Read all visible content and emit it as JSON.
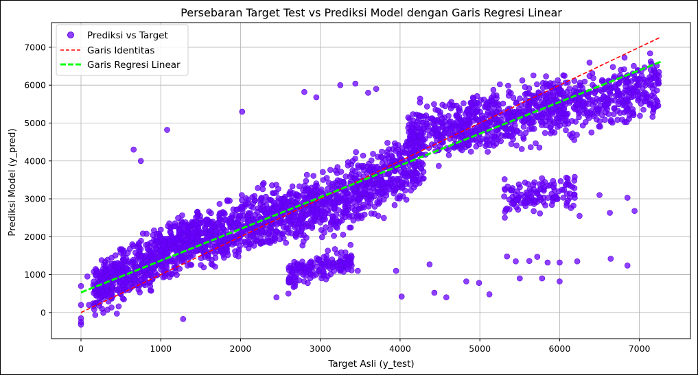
{
  "chart_data": {
    "type": "scatter",
    "title": "Persebaran Target Test vs Prediksi Model dengan Garis Regresi Linear",
    "xlabel": "Target Asli (y_test)",
    "ylabel": "Prediksi Model (y_pred)",
    "xlim": [
      -370,
      7640
    ],
    "ylim": [
      -690,
      7650
    ],
    "xticks": [
      0,
      1000,
      2000,
      3000,
      4000,
      5000,
      6000,
      7000
    ],
    "yticks": [
      0,
      1000,
      2000,
      3000,
      4000,
      5000,
      6000,
      7000
    ],
    "grid": true,
    "legend_position": "top-left",
    "colors": {
      "points": "#6a00ff",
      "identity": "#ff0000",
      "regression": "#00ff00"
    },
    "series": [
      {
        "name": "Prediksi vs Target",
        "kind": "scatter",
        "clusters": [
          {
            "x_range": [
              150,
              1500
            ],
            "y_at_x_min": 550,
            "y_at_x_max": 2100,
            "spread": 350,
            "count": 700
          },
          {
            "x_range": [
              1500,
              3000
            ],
            "y_at_x_min": 1900,
            "y_at_x_max": 2900,
            "spread": 420,
            "count": 650
          },
          {
            "x_range": [
              2600,
              3400
            ],
            "y_at_x_min": 1000,
            "y_at_x_max": 1400,
            "spread": 180,
            "count": 160
          },
          {
            "x_range": [
              3000,
              4300
            ],
            "y_at_x_min": 2700,
            "y_at_x_max": 4100,
            "spread": 450,
            "count": 500
          },
          {
            "x_range": [
              4100,
              7250
            ],
            "y_at_x_min": 4600,
            "y_at_x_max": 6000,
            "spread": 420,
            "count": 1000
          },
          {
            "x_range": [
              5300,
              6200
            ],
            "y_at_x_min": 3000,
            "y_at_x_max": 3200,
            "spread": 220,
            "count": 130
          }
        ],
        "outliers": [
          [
            0,
            -150
          ],
          [
            0,
            -250
          ],
          [
            0,
            -320
          ],
          [
            0,
            200
          ],
          [
            0,
            700
          ],
          [
            80,
            950
          ],
          [
            100,
            200
          ],
          [
            450,
            -30
          ],
          [
            660,
            4300
          ],
          [
            750,
            4000
          ],
          [
            1080,
            4820
          ],
          [
            1280,
            -170
          ],
          [
            2020,
            5300
          ],
          [
            2600,
            500
          ],
          [
            2450,
            400
          ],
          [
            3470,
            1100
          ],
          [
            3950,
            1100
          ],
          [
            4020,
            420
          ],
          [
            4370,
            1270
          ],
          [
            4430,
            520
          ],
          [
            4580,
            400
          ],
          [
            4830,
            820
          ],
          [
            4990,
            780
          ],
          [
            5120,
            480
          ],
          [
            5340,
            1480
          ],
          [
            5450,
            1350
          ],
          [
            5500,
            900
          ],
          [
            5620,
            1360
          ],
          [
            5720,
            1470
          ],
          [
            5780,
            900
          ],
          [
            5850,
            1320
          ],
          [
            6000,
            1320
          ],
          [
            6000,
            820
          ],
          [
            6220,
            1350
          ],
          [
            6640,
            1420
          ],
          [
            6850,
            1240
          ],
          [
            2800,
            5820
          ],
          [
            2950,
            5680
          ],
          [
            3250,
            6000
          ],
          [
            3440,
            6040
          ],
          [
            3600,
            5800
          ],
          [
            3700,
            5900
          ],
          [
            6250,
            2550
          ],
          [
            6630,
            2630
          ],
          [
            6940,
            2680
          ],
          [
            6850,
            3030
          ],
          [
            6500,
            3100
          ]
        ]
      },
      {
        "name": "Garis Identitas",
        "kind": "line",
        "style": "dashed",
        "x": [
          0,
          7270
        ],
        "y": [
          0,
          7270
        ]
      },
      {
        "name": "Garis Regresi Linear",
        "kind": "line",
        "style": "dashed",
        "x": [
          0,
          7270
        ],
        "y": [
          530,
          6620
        ]
      }
    ]
  }
}
